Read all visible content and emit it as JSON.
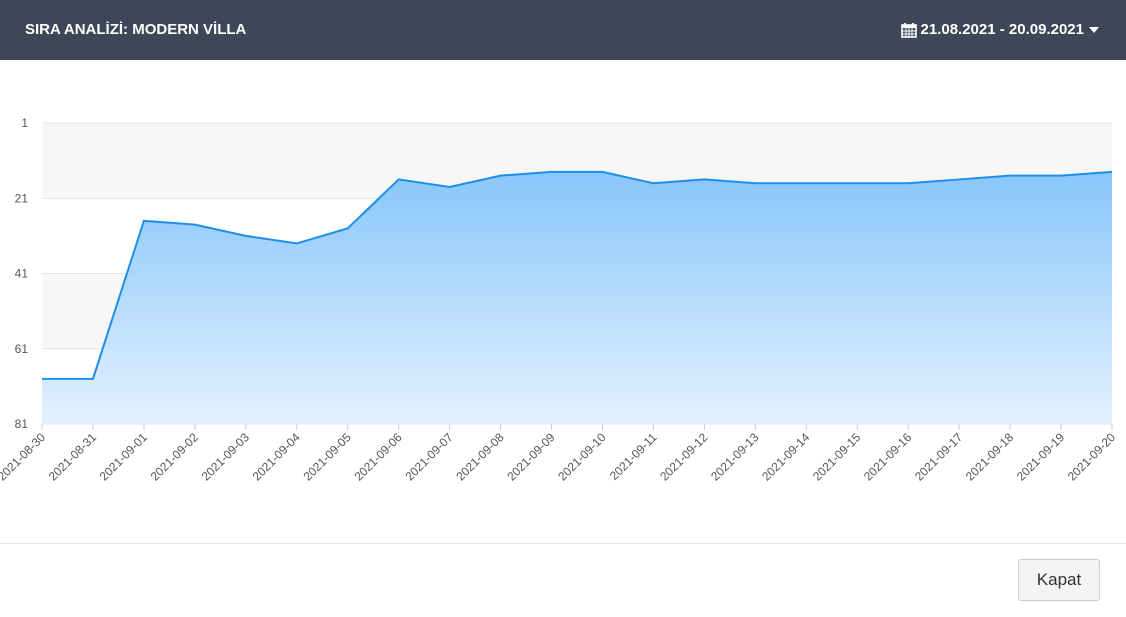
{
  "header": {
    "title": "SIRA ANALİZİ: MODERN VİLLA",
    "date_range": "21.08.2021 - 20.09.2021"
  },
  "chart_data": {
    "type": "area",
    "categories": [
      "2021-08-30",
      "2021-08-31",
      "2021-09-01",
      "2021-09-02",
      "2021-09-03",
      "2021-09-04",
      "2021-09-05",
      "2021-09-06",
      "2021-09-07",
      "2021-09-08",
      "2021-09-09",
      "2021-09-10",
      "2021-09-11",
      "2021-09-12",
      "2021-09-13",
      "2021-09-14",
      "2021-09-15",
      "2021-09-16",
      "2021-09-17",
      "2021-09-18",
      "2021-09-19",
      "2021-09-20"
    ],
    "values": [
      69,
      69,
      27,
      28,
      31,
      33,
      29,
      16,
      18,
      15,
      14,
      14,
      17,
      16,
      17,
      17,
      17,
      17,
      16,
      15,
      15,
      14
    ],
    "color": "#1e8fe8",
    "ylim": [
      81,
      1
    ],
    "yticks": [
      1,
      21,
      41,
      61,
      81
    ],
    "grid": true
  },
  "footer": {
    "button": "Kapat"
  }
}
